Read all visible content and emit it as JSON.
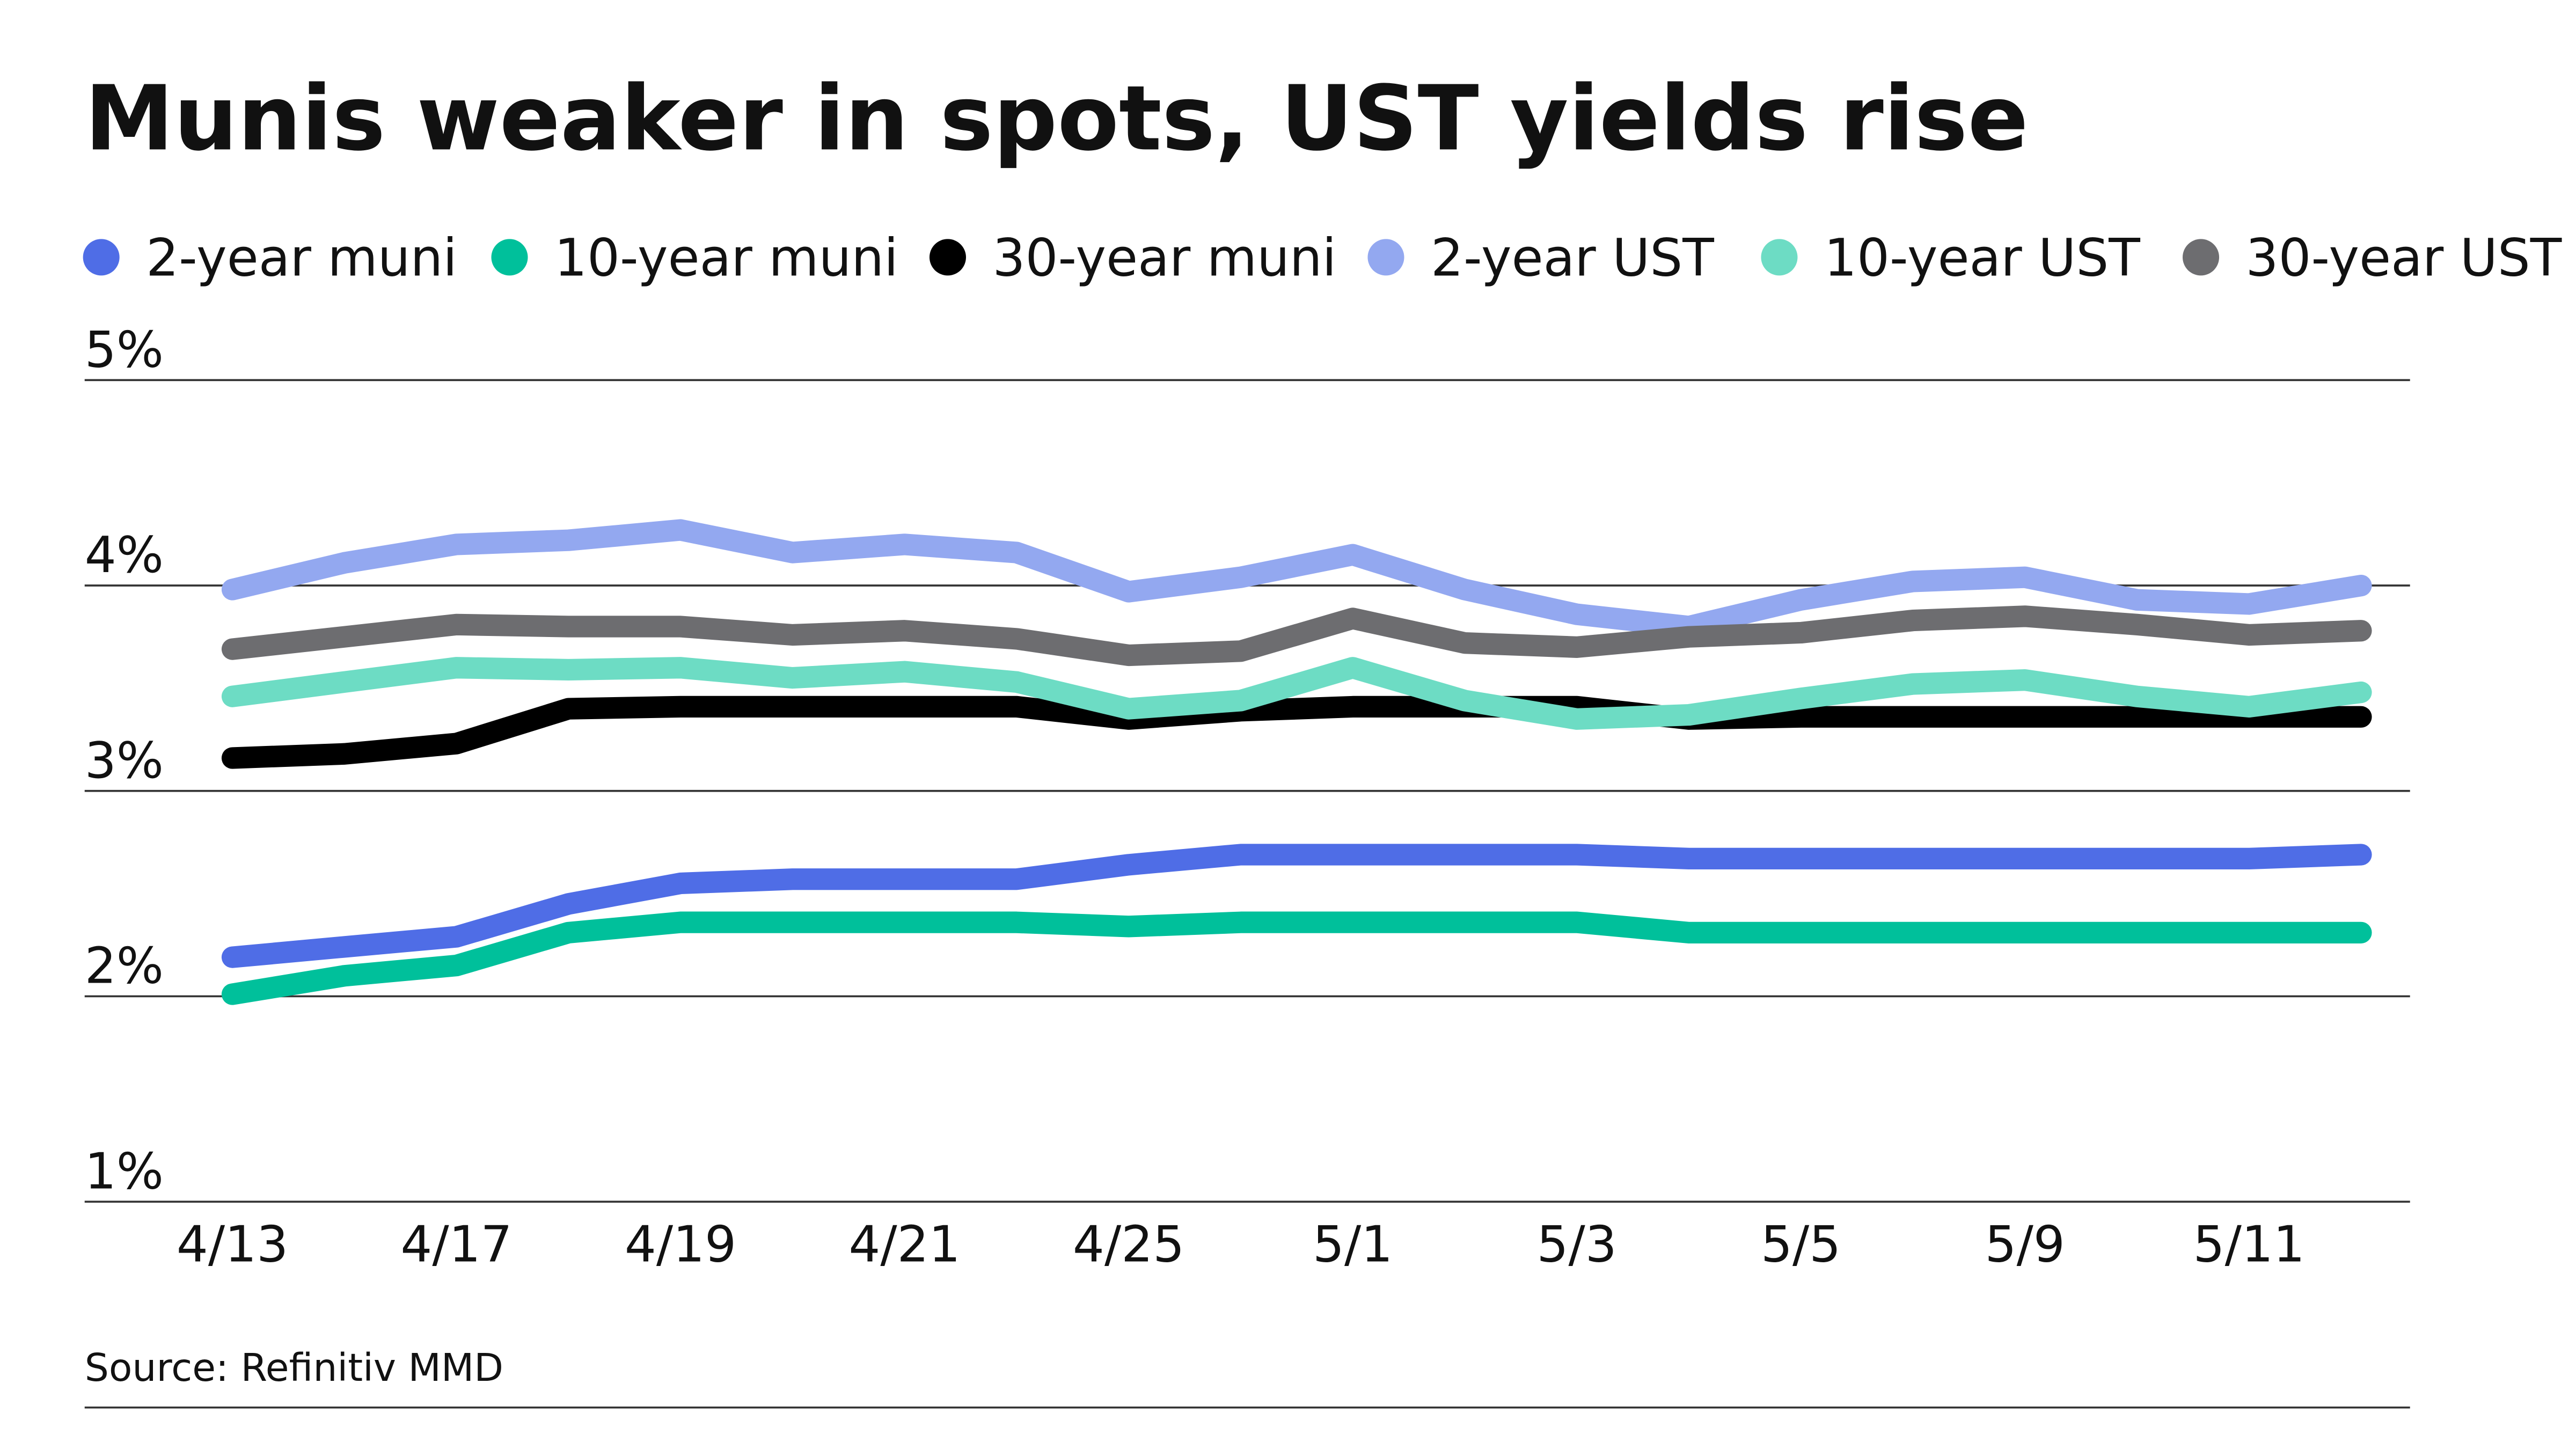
{
  "chart_data": {
    "type": "line",
    "title": "Munis weaker in spots, UST yields rise",
    "source": "Source: Refinitiv MMD",
    "categories": [
      "4/13",
      null,
      "4/17",
      null,
      "4/19",
      null,
      "4/21",
      null,
      "4/25",
      null,
      "5/1",
      null,
      "5/3",
      null,
      "5/5",
      null,
      "5/9",
      null,
      "5/11",
      null
    ],
    "series": [
      {
        "name": "2-year muni",
        "color": "#4f6de6",
        "values": [
          2.19,
          2.24,
          2.29,
          2.45,
          2.55,
          2.57,
          2.57,
          2.57,
          2.64,
          2.69,
          2.69,
          2.69,
          2.69,
          2.67,
          2.67,
          2.67,
          2.67,
          2.67,
          2.67,
          2.69
        ]
      },
      {
        "name": "10-year muni",
        "color": "#00c09b",
        "values": [
          2.01,
          2.1,
          2.15,
          2.31,
          2.36,
          2.36,
          2.36,
          2.36,
          2.34,
          2.36,
          2.36,
          2.36,
          2.36,
          2.31,
          2.31,
          2.31,
          2.31,
          2.31,
          2.31,
          2.31
        ]
      },
      {
        "name": "30-year muni",
        "color": "#000000",
        "values": [
          3.16,
          3.18,
          3.23,
          3.4,
          3.41,
          3.41,
          3.41,
          3.41,
          3.35,
          3.39,
          3.41,
          3.41,
          3.41,
          3.35,
          3.36,
          3.36,
          3.36,
          3.36,
          3.36,
          3.36
        ]
      },
      {
        "name": "2-year UST",
        "color": "#93a8f0",
        "values": [
          3.98,
          4.11,
          4.2,
          4.22,
          4.27,
          4.16,
          4.2,
          4.16,
          3.97,
          4.04,
          4.15,
          3.98,
          3.86,
          3.8,
          3.93,
          4.02,
          4.04,
          3.93,
          3.91,
          4.0
        ]
      },
      {
        "name": "10-year UST",
        "color": "#6ddcc4",
        "values": [
          3.46,
          3.53,
          3.6,
          3.59,
          3.6,
          3.55,
          3.58,
          3.53,
          3.4,
          3.44,
          3.6,
          3.44,
          3.35,
          3.37,
          3.45,
          3.52,
          3.54,
          3.46,
          3.41,
          3.48
        ]
      },
      {
        "name": "30-year UST",
        "color": "#6d6d70",
        "values": [
          3.69,
          3.75,
          3.81,
          3.8,
          3.8,
          3.76,
          3.78,
          3.74,
          3.66,
          3.68,
          3.84,
          3.72,
          3.7,
          3.75,
          3.77,
          3.83,
          3.85,
          3.81,
          3.76,
          3.78
        ]
      }
    ],
    "ylim": [
      1,
      5
    ],
    "yticks": [
      {
        "value": 1,
        "label": "1%"
      },
      {
        "value": 2,
        "label": "2%"
      },
      {
        "value": 3,
        "label": "3%"
      },
      {
        "value": 4,
        "label": "4%"
      },
      {
        "value": 5,
        "label": "5%"
      }
    ],
    "grid": true,
    "legend": "top"
  }
}
